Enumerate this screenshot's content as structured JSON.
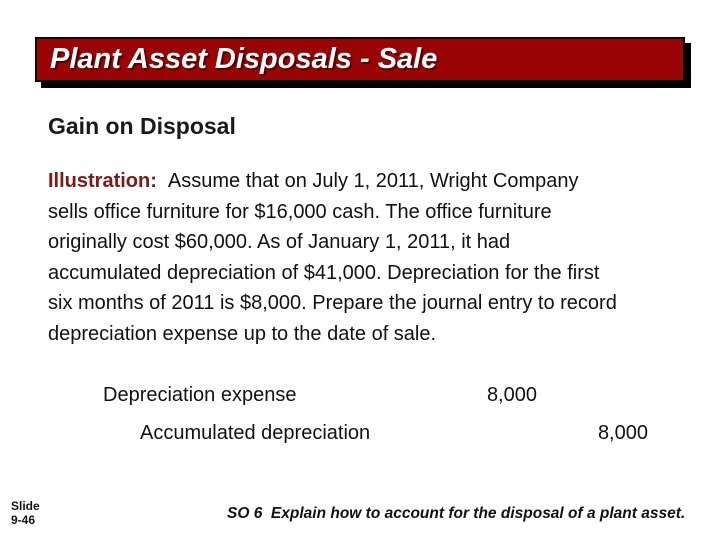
{
  "slide": {
    "title": "Plant Asset Disposals - Sale",
    "heading": "Gain on Disposal",
    "illustration": {
      "label": "Illustration:",
      "lines": [
        "Assume that on July 1, 2011, Wright Company",
        "sells office furniture for $16,000 cash. The office furniture",
        "originally cost $60,000. As of January 1, 2011, it had",
        "accumulated depreciation of $41,000. Depreciation for the first",
        "six months of 2011 is $8,000. Prepare the journal entry to record",
        "depreciation expense up to the date of sale."
      ]
    },
    "journal": {
      "rows": [
        {
          "account": "Depreciation expense",
          "debit": "8,000",
          "credit": ""
        },
        {
          "account": "Accumulated depreciation",
          "debit": "",
          "credit": "8,000"
        }
      ]
    },
    "footer": {
      "slide_label": "Slide",
      "slide_number": "9-46",
      "so_text": "SO 6  Explain how to account for the disposal of a plant asset."
    },
    "colors": {
      "title_bar_bg": "#9a0404",
      "title_bar_border": "#000000",
      "title_text": "#ffffff",
      "illustration_label": "#7d1916",
      "body_text": "#111111"
    }
  }
}
